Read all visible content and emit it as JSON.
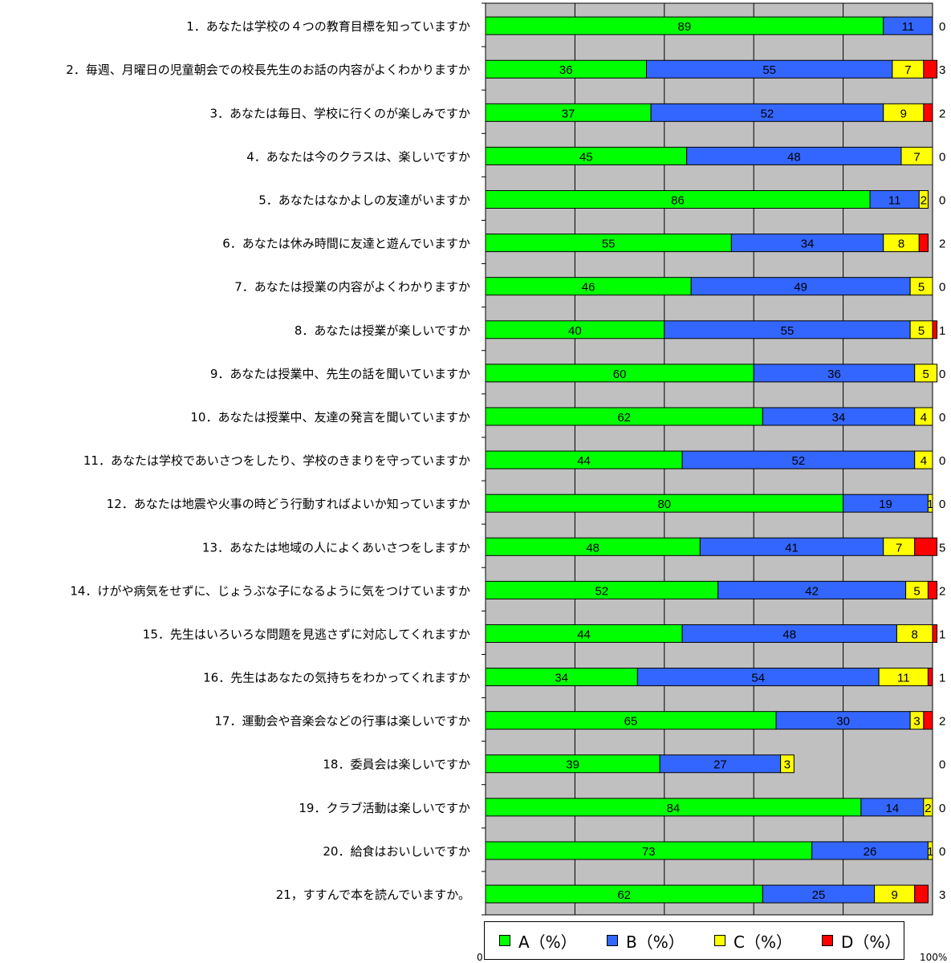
{
  "chart_data": {
    "type": "bar",
    "orientation": "horizontal",
    "stacked": true,
    "grid": true,
    "legend_position": "bottom",
    "xlim": [
      0,
      100
    ],
    "x_tick_labels": {
      "min": "0",
      "max": "100%"
    },
    "categories": [
      "1．あなたは学校の４つの教育目標を知っていますか",
      "2．毎週、月曜日の児童朝会での校長先生のお話の内容がよくわかりますか",
      "3．あなたは毎日、学校に行くのが楽しみですか",
      "4．あなたは今のクラスは、楽しいですか",
      "5．あなたはなかよしの友達がいますか",
      "6．あなたは休み時間に友達と遊んでいますか",
      "7．あなたは授業の内容がよくわかりますか",
      "8．あなたは授業が楽しいですか",
      "9．あなたは授業中、先生の話を聞いていますか",
      "10．あなたは授業中、友達の発言を聞いていますか",
      "11．あなたは学校であいさつをしたり、学校のきまりを守っていますか",
      "12．あなたは地震や火事の時どう行動すればよいか知っていますか",
      "13．あなたは地域の人によくあいさつをしますか",
      "14．けがや病気をせずに、じょうぶな子になるように気をつけていますか",
      "15．先生はいろいろな問題を見逃さずに対応してくれますか",
      "16．先生はあなたの気持ちをわかってくれますか",
      "17．運動会や音楽会などの行事は楽しいですか",
      "18．委員会は楽しいですか",
      "19．クラブ活動は楽しいですか",
      "20．給食はおいしいですか",
      "21，すすんで本を読んでいますか。"
    ],
    "series": [
      {
        "name": "A（%）",
        "color": "#00ff00",
        "values": [
          89,
          36,
          37,
          45,
          86,
          55,
          46,
          40,
          60,
          62,
          44,
          80,
          48,
          52,
          44,
          34,
          65,
          39,
          84,
          73,
          62
        ]
      },
      {
        "name": "B（%）",
        "color": "#3366ff",
        "values": [
          11,
          55,
          52,
          48,
          11,
          34,
          49,
          55,
          36,
          34,
          52,
          19,
          41,
          42,
          48,
          54,
          30,
          27,
          14,
          26,
          25
        ]
      },
      {
        "name": "C（%）",
        "color": "#ffff00",
        "values": [
          0,
          7,
          9,
          7,
          2,
          8,
          5,
          5,
          5,
          4,
          4,
          1,
          7,
          5,
          8,
          11,
          3,
          3,
          2,
          1,
          9
        ]
      },
      {
        "name": "D（%）",
        "color": "#ff0000",
        "values": [
          0,
          3,
          2,
          0,
          0,
          2,
          0,
          1,
          0,
          0,
          0,
          0,
          5,
          2,
          1,
          1,
          2,
          0,
          0,
          0,
          3
        ]
      }
    ]
  },
  "colors": {
    "plot_background": "#c0c0c0",
    "grid": "#000000"
  }
}
